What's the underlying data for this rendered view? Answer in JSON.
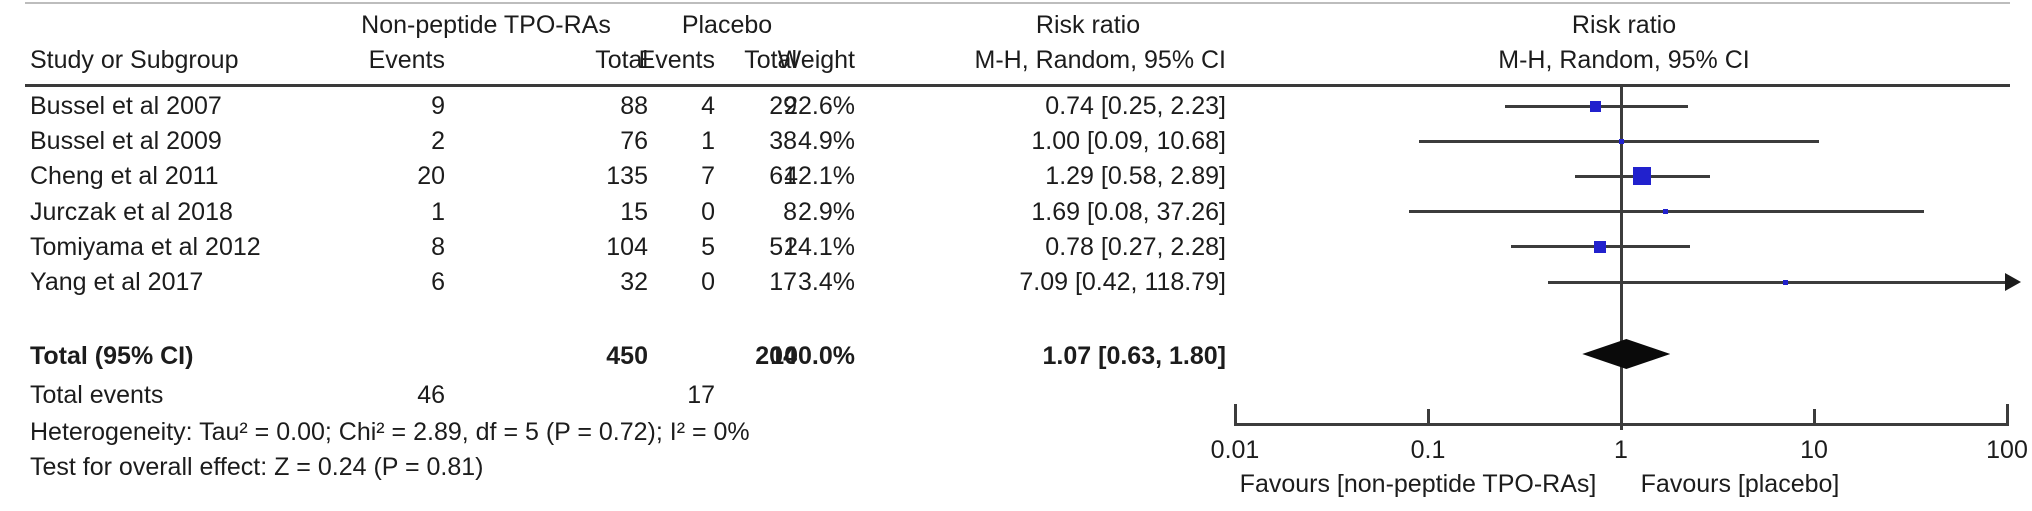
{
  "table": {
    "headers": {
      "group1": "Non-peptide TPO-RAs",
      "group2": "Placebo",
      "study": "Study or Subgroup",
      "events": "Events",
      "total": "Total",
      "weight": "Weight",
      "risk_ratio": "Risk ratio",
      "method": "M-H, Random, 95% CI"
    },
    "rows": [
      {
        "study": "Bussel et al 2007",
        "e1": "9",
        "t1": "88",
        "e2": "4",
        "t2": "29",
        "weight": "22.6%",
        "ci": "0.74 [0.25, 2.23]"
      },
      {
        "study": "Bussel et al 2009",
        "e1": "2",
        "t1": "76",
        "e2": "1",
        "t2": "38",
        "weight": "4.9%",
        "ci": "1.00 [0.09, 10.68]"
      },
      {
        "study": "Cheng et al 2011",
        "e1": "20",
        "t1": "135",
        "e2": "7",
        "t2": "61",
        "weight": "42.1%",
        "ci": "1.29 [0.58, 2.89]"
      },
      {
        "study": "Jurczak et al 2018",
        "e1": "1",
        "t1": "15",
        "e2": "0",
        "t2": "8",
        "weight": "2.9%",
        "ci": "1.69 [0.08, 37.26]"
      },
      {
        "study": "Tomiyama et al 2012",
        "e1": "8",
        "t1": "104",
        "e2": "5",
        "t2": "51",
        "weight": "24.1%",
        "ci": "0.78 [0.27, 2.28]"
      },
      {
        "study": "Yang et al 2017",
        "e1": "6",
        "t1": "32",
        "e2": "0",
        "t2": "17",
        "weight": "3.4%",
        "ci": "7.09 [0.42, 118.79]"
      }
    ],
    "total_row": {
      "label": "Total (95% CI)",
      "t1": "450",
      "t2": "204",
      "weight": "100.0%",
      "ci": "1.07 [0.63, 1.80]"
    },
    "total_events": {
      "label": "Total events",
      "e1": "46",
      "e2": "17"
    },
    "heterogeneity": "Heterogeneity: Tau² = 0.00; Chi² = 2.89, df = 5 (P = 0.72); I² = 0%",
    "overall_effect": "Test for overall effect: Z = 0.24 (P = 0.81)"
  },
  "chart_data": {
    "type": "forest",
    "effect_measure": "Risk ratio",
    "model": "M-H, Random, 95% CI",
    "x_axis": {
      "scale": "log",
      "min": 0.01,
      "max": 100,
      "ticks": [
        0.01,
        0.1,
        1,
        10,
        100
      ]
    },
    "favours_left": "Favours [non-peptide TPO-RAs]",
    "favours_right": "Favours [placebo]",
    "marker_color": "#2121cd",
    "studies": [
      {
        "name": "Bussel et al 2007",
        "rr": 0.74,
        "lo": 0.25,
        "hi": 2.23,
        "weight": 22.6
      },
      {
        "name": "Bussel et al 2009",
        "rr": 1.0,
        "lo": 0.09,
        "hi": 10.68,
        "weight": 4.9
      },
      {
        "name": "Cheng et al 2011",
        "rr": 1.29,
        "lo": 0.58,
        "hi": 2.89,
        "weight": 42.1
      },
      {
        "name": "Jurczak et al 2018",
        "rr": 1.69,
        "lo": 0.08,
        "hi": 37.26,
        "weight": 2.9
      },
      {
        "name": "Tomiyama et al 2012",
        "rr": 0.78,
        "lo": 0.27,
        "hi": 2.28,
        "weight": 24.1
      },
      {
        "name": "Yang et al 2017",
        "rr": 7.09,
        "lo": 0.42,
        "hi": 118.79,
        "weight": 3.4
      }
    ],
    "total": {
      "rr": 1.07,
      "lo": 0.63,
      "hi": 1.8,
      "weight": 100.0
    }
  }
}
